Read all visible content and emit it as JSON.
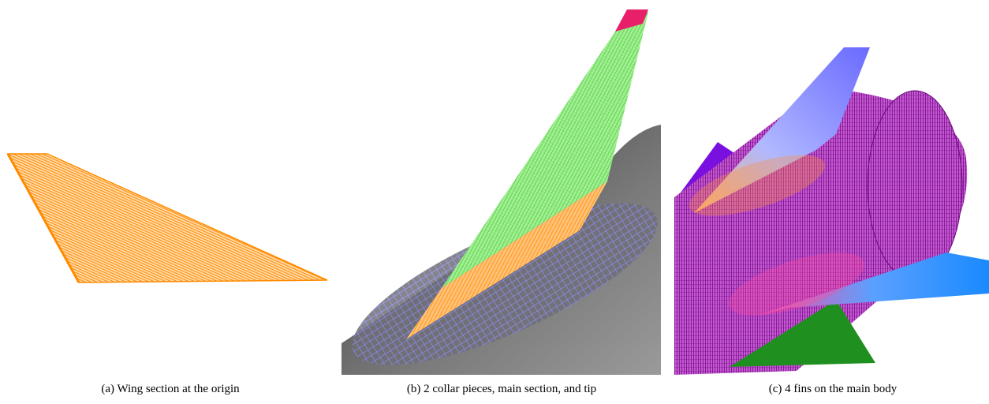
{
  "figure": {
    "subfigures": [
      {
        "caption": "(a) Wing section at the origin"
      },
      {
        "caption": "(b) 2 collar pieces, main section, and tip"
      },
      {
        "caption": "(c) 4 fins on the main body"
      }
    ]
  }
}
